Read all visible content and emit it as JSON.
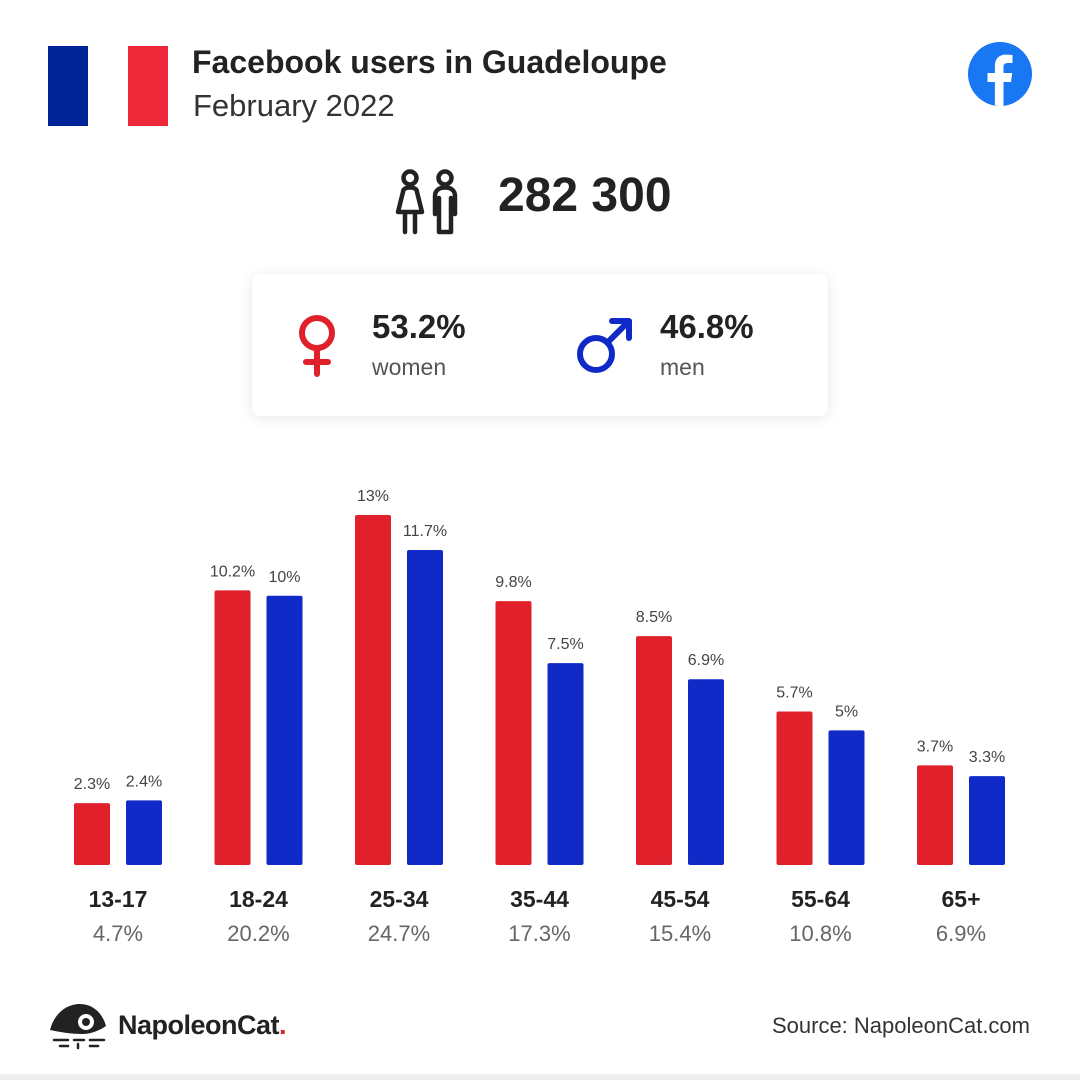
{
  "header": {
    "title": "Facebook users in Guadeloupe",
    "subtitle": "February 2022",
    "flag_colors": [
      "#002395",
      "#ffffff",
      "#ed2939"
    ],
    "logo_icon": "facebook-icon",
    "logo_color": "#1877f2"
  },
  "summary": {
    "icon": "users-icon",
    "total": "282 300"
  },
  "gender": {
    "women": {
      "pct": "53.2%",
      "label": "women",
      "icon": "female-symbol-icon",
      "color": "#e0202a"
    },
    "men": {
      "pct": "46.8%",
      "label": "men",
      "icon": "male-symbol-icon",
      "color": "#0f2ac6"
    }
  },
  "chart_data": {
    "type": "bar",
    "categories": [
      "13-17",
      "18-24",
      "25-34",
      "35-44",
      "45-54",
      "55-64",
      "65+"
    ],
    "category_totals": [
      "4.7%",
      "20.2%",
      "24.7%",
      "17.3%",
      "15.4%",
      "10.8%",
      "6.9%"
    ],
    "series": [
      {
        "name": "women",
        "color": "#e0202a",
        "values": [
          2.3,
          10.2,
          13,
          9.8,
          8.5,
          5.7,
          3.7
        ],
        "labels": [
          "2.3%",
          "10.2%",
          "13%",
          "9.8%",
          "8.5%",
          "5.7%",
          "3.7%"
        ]
      },
      {
        "name": "men",
        "color": "#0f2ac6",
        "values": [
          2.4,
          10,
          11.7,
          7.5,
          6.9,
          5,
          3.3
        ],
        "labels": [
          "2.4%",
          "10%",
          "11.7%",
          "7.5%",
          "6.9%",
          "5%",
          "3.3%"
        ]
      }
    ],
    "ylim": [
      0,
      13
    ],
    "grid": false,
    "title": "",
    "xlabel": "",
    "ylabel": ""
  },
  "footer": {
    "brand_icon": "napoleoncat-icon",
    "brand_name": "NapoleonCat",
    "brand_dot": ".",
    "source": "Source: NapoleonCat.com"
  }
}
